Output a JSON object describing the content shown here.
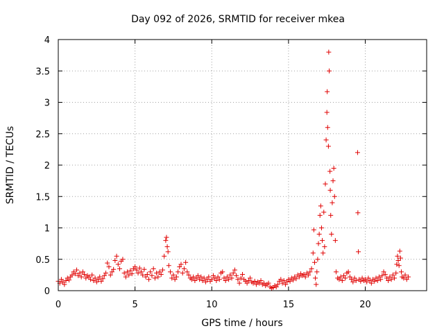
{
  "chart_data": {
    "type": "scatter",
    "title": "Day 092 of 2026, SRMTID for receiver mkea",
    "xlabel": "GPS time / hours",
    "ylabel": "SRMTID / TECUs",
    "xlim": [
      0,
      24
    ],
    "ylim": [
      0,
      4
    ],
    "x_ticks": [
      0,
      5,
      10,
      15,
      20
    ],
    "x_tick_labels": [
      "0",
      "5",
      "10",
      "15",
      "20"
    ],
    "y_ticks": [
      0,
      0.5,
      1,
      1.5,
      2,
      2.5,
      3,
      3.5,
      4
    ],
    "y_tick_labels": [
      "0",
      "0.5",
      "1",
      "1.5",
      "2",
      "2.5",
      "3",
      "3.5",
      "4"
    ],
    "grid": true,
    "marker": "+",
    "color": "#e00000",
    "series": [
      {
        "name": "SRMTID",
        "points": [
          [
            0.0,
            0.15
          ],
          [
            0.1,
            0.12
          ],
          [
            0.2,
            0.18
          ],
          [
            0.3,
            0.14
          ],
          [
            0.4,
            0.1
          ],
          [
            0.5,
            0.16
          ],
          [
            0.6,
            0.2
          ],
          [
            0.7,
            0.17
          ],
          [
            0.8,
            0.22
          ],
          [
            0.9,
            0.25
          ],
          [
            1.0,
            0.3
          ],
          [
            1.1,
            0.27
          ],
          [
            1.2,
            0.33
          ],
          [
            1.3,
            0.24
          ],
          [
            1.4,
            0.28
          ],
          [
            1.5,
            0.22
          ],
          [
            1.6,
            0.3
          ],
          [
            1.7,
            0.26
          ],
          [
            1.8,
            0.2
          ],
          [
            1.9,
            0.24
          ],
          [
            2.0,
            0.22
          ],
          [
            2.1,
            0.18
          ],
          [
            2.2,
            0.25
          ],
          [
            2.3,
            0.16
          ],
          [
            2.4,
            0.2
          ],
          [
            2.5,
            0.14
          ],
          [
            2.6,
            0.18
          ],
          [
            2.7,
            0.22
          ],
          [
            2.8,
            0.15
          ],
          [
            2.9,
            0.19
          ],
          [
            3.0,
            0.24
          ],
          [
            3.1,
            0.28
          ],
          [
            3.2,
            0.44
          ],
          [
            3.3,
            0.38
          ],
          [
            3.4,
            0.25
          ],
          [
            3.5,
            0.3
          ],
          [
            3.6,
            0.34
          ],
          [
            3.7,
            0.48
          ],
          [
            3.8,
            0.55
          ],
          [
            3.9,
            0.42
          ],
          [
            4.0,
            0.35
          ],
          [
            4.1,
            0.47
          ],
          [
            4.2,
            0.5
          ],
          [
            4.3,
            0.28
          ],
          [
            4.4,
            0.22
          ],
          [
            4.5,
            0.3
          ],
          [
            4.6,
            0.25
          ],
          [
            4.7,
            0.32
          ],
          [
            4.8,
            0.27
          ],
          [
            4.9,
            0.35
          ],
          [
            5.0,
            0.38
          ],
          [
            5.1,
            0.33
          ],
          [
            5.2,
            0.28
          ],
          [
            5.3,
            0.36
          ],
          [
            5.4,
            0.3
          ],
          [
            5.5,
            0.25
          ],
          [
            5.6,
            0.34
          ],
          [
            5.7,
            0.22
          ],
          [
            5.8,
            0.26
          ],
          [
            5.9,
            0.18
          ],
          [
            6.0,
            0.3
          ],
          [
            6.1,
            0.24
          ],
          [
            6.2,
            0.35
          ],
          [
            6.3,
            0.2
          ],
          [
            6.4,
            0.28
          ],
          [
            6.5,
            0.22
          ],
          [
            6.6,
            0.3
          ],
          [
            6.7,
            0.26
          ],
          [
            6.8,
            0.33
          ],
          [
            6.9,
            0.55
          ],
          [
            7.0,
            0.8
          ],
          [
            7.05,
            0.85
          ],
          [
            7.1,
            0.7
          ],
          [
            7.15,
            0.62
          ],
          [
            7.2,
            0.4
          ],
          [
            7.3,
            0.3
          ],
          [
            7.4,
            0.2
          ],
          [
            7.5,
            0.25
          ],
          [
            7.6,
            0.18
          ],
          [
            7.7,
            0.22
          ],
          [
            7.8,
            0.3
          ],
          [
            7.9,
            0.38
          ],
          [
            8.0,
            0.42
          ],
          [
            8.1,
            0.28
          ],
          [
            8.2,
            0.35
          ],
          [
            8.3,
            0.45
          ],
          [
            8.4,
            0.3
          ],
          [
            8.5,
            0.25
          ],
          [
            8.6,
            0.2
          ],
          [
            8.7,
            0.18
          ],
          [
            8.8,
            0.22
          ],
          [
            8.9,
            0.16
          ],
          [
            9.0,
            0.2
          ],
          [
            9.1,
            0.24
          ],
          [
            9.2,
            0.18
          ],
          [
            9.3,
            0.22
          ],
          [
            9.4,
            0.16
          ],
          [
            9.5,
            0.2
          ],
          [
            9.6,
            0.14
          ],
          [
            9.7,
            0.18
          ],
          [
            9.8,
            0.22
          ],
          [
            9.9,
            0.15
          ],
          [
            10.0,
            0.18
          ],
          [
            10.1,
            0.24
          ],
          [
            10.2,
            0.2
          ],
          [
            10.3,
            0.16
          ],
          [
            10.4,
            0.22
          ],
          [
            10.5,
            0.18
          ],
          [
            10.6,
            0.28
          ],
          [
            10.7,
            0.3
          ],
          [
            10.8,
            0.2
          ],
          [
            10.9,
            0.16
          ],
          [
            11.0,
            0.22
          ],
          [
            11.1,
            0.18
          ],
          [
            11.2,
            0.25
          ],
          [
            11.3,
            0.2
          ],
          [
            11.4,
            0.28
          ],
          [
            11.5,
            0.33
          ],
          [
            11.6,
            0.24
          ],
          [
            11.7,
            0.18
          ],
          [
            11.8,
            0.12
          ],
          [
            11.9,
            0.2
          ],
          [
            12.0,
            0.26
          ],
          [
            12.1,
            0.18
          ],
          [
            12.2,
            0.15
          ],
          [
            12.3,
            0.12
          ],
          [
            12.4,
            0.16
          ],
          [
            12.5,
            0.2
          ],
          [
            12.6,
            0.14
          ],
          [
            12.7,
            0.12
          ],
          [
            12.8,
            0.15
          ],
          [
            12.9,
            0.1
          ],
          [
            13.0,
            0.14
          ],
          [
            13.1,
            0.12
          ],
          [
            13.2,
            0.16
          ],
          [
            13.3,
            0.1
          ],
          [
            13.4,
            0.12
          ],
          [
            13.5,
            0.08
          ],
          [
            13.6,
            0.1
          ],
          [
            13.7,
            0.12
          ],
          [
            13.8,
            0.06
          ],
          [
            13.9,
            0.04
          ],
          [
            14.0,
            0.05
          ],
          [
            14.1,
            0.08
          ],
          [
            14.2,
            0.06
          ],
          [
            14.3,
            0.1
          ],
          [
            14.4,
            0.15
          ],
          [
            14.5,
            0.18
          ],
          [
            14.6,
            0.12
          ],
          [
            14.7,
            0.16
          ],
          [
            14.8,
            0.1
          ],
          [
            14.9,
            0.14
          ],
          [
            15.0,
            0.18
          ],
          [
            15.1,
            0.15
          ],
          [
            15.2,
            0.2
          ],
          [
            15.3,
            0.17
          ],
          [
            15.4,
            0.22
          ],
          [
            15.5,
            0.19
          ],
          [
            15.6,
            0.25
          ],
          [
            15.7,
            0.22
          ],
          [
            15.8,
            0.27
          ],
          [
            15.9,
            0.24
          ],
          [
            16.0,
            0.26
          ],
          [
            16.1,
            0.22
          ],
          [
            16.2,
            0.28
          ],
          [
            16.3,
            0.25
          ],
          [
            16.4,
            0.3
          ],
          [
            16.5,
            0.35
          ],
          [
            16.6,
            0.6
          ],
          [
            16.65,
            0.97
          ],
          [
            16.7,
            0.45
          ],
          [
            16.75,
            0.2
          ],
          [
            16.8,
            0.1
          ],
          [
            16.85,
            0.3
          ],
          [
            16.9,
            0.5
          ],
          [
            16.95,
            0.75
          ],
          [
            17.0,
            0.9
          ],
          [
            17.05,
            1.2
          ],
          [
            17.1,
            1.35
          ],
          [
            17.15,
            1.0
          ],
          [
            17.2,
            0.8
          ],
          [
            17.25,
            0.6
          ],
          [
            17.3,
            1.25
          ],
          [
            17.35,
            0.7
          ],
          [
            17.4,
            1.7
          ],
          [
            17.45,
            2.4
          ],
          [
            17.5,
            2.84
          ],
          [
            17.52,
            3.17
          ],
          [
            17.55,
            2.6
          ],
          [
            17.6,
            2.3
          ],
          [
            17.62,
            3.8
          ],
          [
            17.65,
            3.5
          ],
          [
            17.7,
            1.9
          ],
          [
            17.72,
            1.6
          ],
          [
            17.75,
            1.2
          ],
          [
            17.8,
            0.9
          ],
          [
            17.85,
            1.4
          ],
          [
            17.9,
            1.75
          ],
          [
            17.95,
            1.95
          ],
          [
            18.0,
            1.5
          ],
          [
            18.05,
            0.8
          ],
          [
            18.1,
            0.3
          ],
          [
            18.2,
            0.2
          ],
          [
            18.3,
            0.18
          ],
          [
            18.4,
            0.22
          ],
          [
            18.5,
            0.16
          ],
          [
            18.6,
            0.24
          ],
          [
            18.7,
            0.2
          ],
          [
            18.8,
            0.28
          ],
          [
            18.9,
            0.3
          ],
          [
            19.0,
            0.22
          ],
          [
            19.1,
            0.18
          ],
          [
            19.2,
            0.14
          ],
          [
            19.3,
            0.2
          ],
          [
            19.4,
            0.16
          ],
          [
            19.5,
            2.2
          ],
          [
            19.52,
            1.24
          ],
          [
            19.55,
            0.62
          ],
          [
            19.6,
            0.18
          ],
          [
            19.7,
            0.15
          ],
          [
            19.8,
            0.2
          ],
          [
            19.9,
            0.16
          ],
          [
            20.0,
            0.18
          ],
          [
            20.1,
            0.14
          ],
          [
            20.2,
            0.2
          ],
          [
            20.3,
            0.16
          ],
          [
            20.4,
            0.12
          ],
          [
            20.5,
            0.18
          ],
          [
            20.6,
            0.15
          ],
          [
            20.7,
            0.2
          ],
          [
            20.8,
            0.16
          ],
          [
            20.9,
            0.22
          ],
          [
            21.0,
            0.18
          ],
          [
            21.1,
            0.24
          ],
          [
            21.2,
            0.3
          ],
          [
            21.3,
            0.26
          ],
          [
            21.4,
            0.2
          ],
          [
            21.5,
            0.16
          ],
          [
            21.6,
            0.22
          ],
          [
            21.7,
            0.18
          ],
          [
            21.8,
            0.25
          ],
          [
            21.9,
            0.2
          ],
          [
            22.0,
            0.28
          ],
          [
            22.05,
            0.42
          ],
          [
            22.1,
            0.55
          ],
          [
            22.15,
            0.48
          ],
          [
            22.2,
            0.4
          ],
          [
            22.25,
            0.63
          ],
          [
            22.3,
            0.52
          ],
          [
            22.35,
            0.3
          ],
          [
            22.4,
            0.22
          ],
          [
            22.5,
            0.2
          ],
          [
            22.6,
            0.25
          ],
          [
            22.7,
            0.18
          ],
          [
            22.8,
            0.22
          ]
        ]
      }
    ]
  }
}
